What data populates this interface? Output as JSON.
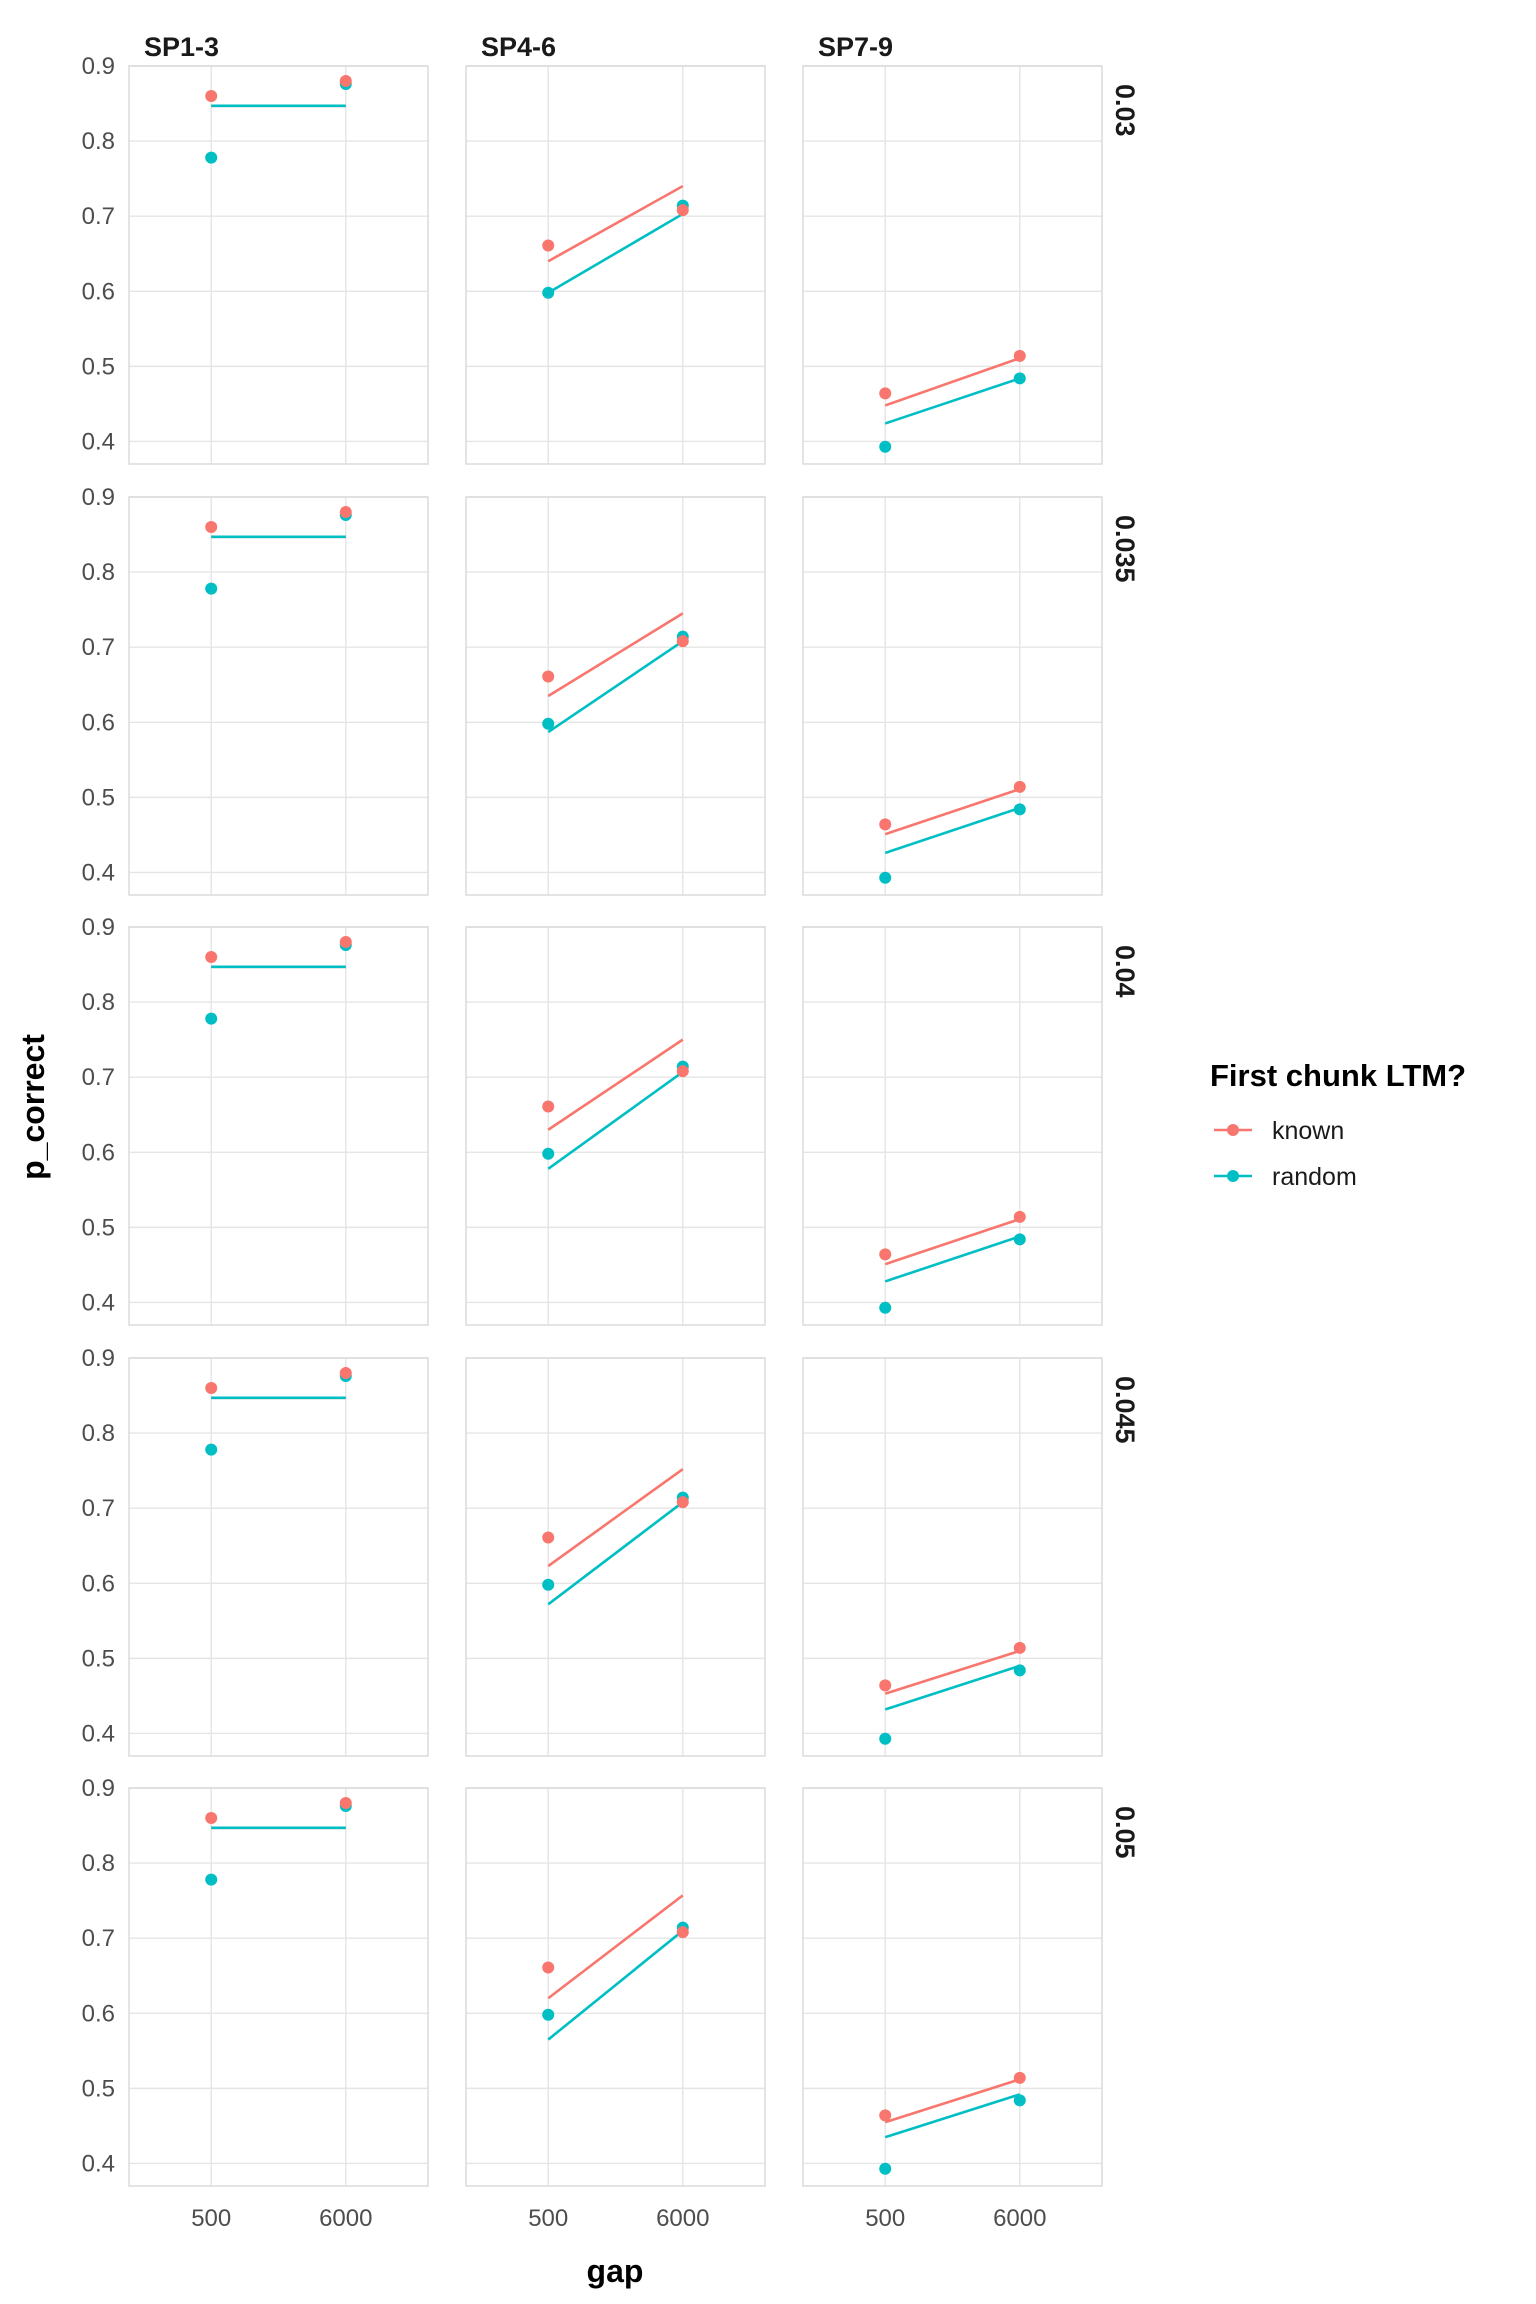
{
  "chart_data": {
    "type": "line",
    "description_free": true,
    "xlabel": "gap",
    "ylabel": "p_correct",
    "x_categories": [
      "500",
      "6000"
    ],
    "ylim": [
      0.37,
      0.9
    ],
    "y_ticks": [
      0.4,
      0.5,
      0.6,
      0.7,
      0.8,
      0.9
    ],
    "y_tick_labels": [
      "0.4",
      "0.5",
      "0.6",
      "0.7",
      "0.8",
      "0.9"
    ],
    "column_facets": [
      "SP1-3",
      "SP4-6",
      "SP7-9"
    ],
    "row_facets": [
      "0.03",
      "0.035",
      "0.04",
      "0.045",
      "0.05"
    ],
    "legend": {
      "title": "First chunk LTM?",
      "placement": "right",
      "entries": [
        {
          "label": "known",
          "color": "#F8766D"
        },
        {
          "label": "random",
          "color": "#00BFC4"
        }
      ]
    },
    "observed_points": {
      "SP1-3": {
        "known": [
          0.86,
          0.88
        ],
        "random": [
          0.778,
          0.876
        ]
      },
      "SP4-6": {
        "known": [
          0.661,
          0.708
        ],
        "random": [
          0.598,
          0.714
        ]
      },
      "SP7-9": {
        "known": [
          0.464,
          0.514
        ],
        "random": [
          0.393,
          0.484
        ]
      }
    },
    "model_lines": {
      "0.03": {
        "SP1-3": {
          "known": [
            0.847,
            0.847
          ],
          "random": [
            0.847,
            0.847
          ]
        },
        "SP4-6": {
          "known": [
            0.64,
            0.74
          ],
          "random": [
            0.598,
            0.703
          ]
        },
        "SP7-9": {
          "known": [
            0.448,
            0.511
          ],
          "random": [
            0.424,
            0.484
          ]
        }
      },
      "0.035": {
        "SP1-3": {
          "known": [
            0.847,
            0.847
          ],
          "random": [
            0.847,
            0.847
          ]
        },
        "SP4-6": {
          "known": [
            0.635,
            0.745
          ],
          "random": [
            0.587,
            0.708
          ]
        },
        "SP7-9": {
          "known": [
            0.451,
            0.511
          ],
          "random": [
            0.426,
            0.486
          ]
        }
      },
      "0.04": {
        "SP1-3": {
          "known": [
            0.847,
            0.847
          ],
          "random": [
            0.847,
            0.847
          ]
        },
        "SP4-6": {
          "known": [
            0.63,
            0.75
          ],
          "random": [
            0.578,
            0.707
          ]
        },
        "SP7-9": {
          "known": [
            0.451,
            0.511
          ],
          "random": [
            0.428,
            0.488
          ]
        }
      },
      "0.045": {
        "SP1-3": {
          "known": [
            0.847,
            0.847
          ],
          "random": [
            0.847,
            0.847
          ]
        },
        "SP4-6": {
          "known": [
            0.623,
            0.752
          ],
          "random": [
            0.572,
            0.708
          ]
        },
        "SP7-9": {
          "known": [
            0.453,
            0.51
          ],
          "random": [
            0.432,
            0.49
          ]
        }
      },
      "0.05": {
        "SP1-3": {
          "known": [
            0.847,
            0.847
          ],
          "random": [
            0.847,
            0.847
          ]
        },
        "SP4-6": {
          "known": [
            0.62,
            0.757
          ],
          "random": [
            0.565,
            0.71
          ]
        },
        "SP7-9": {
          "known": [
            0.455,
            0.512
          ],
          "random": [
            0.435,
            0.492
          ]
        }
      }
    }
  }
}
